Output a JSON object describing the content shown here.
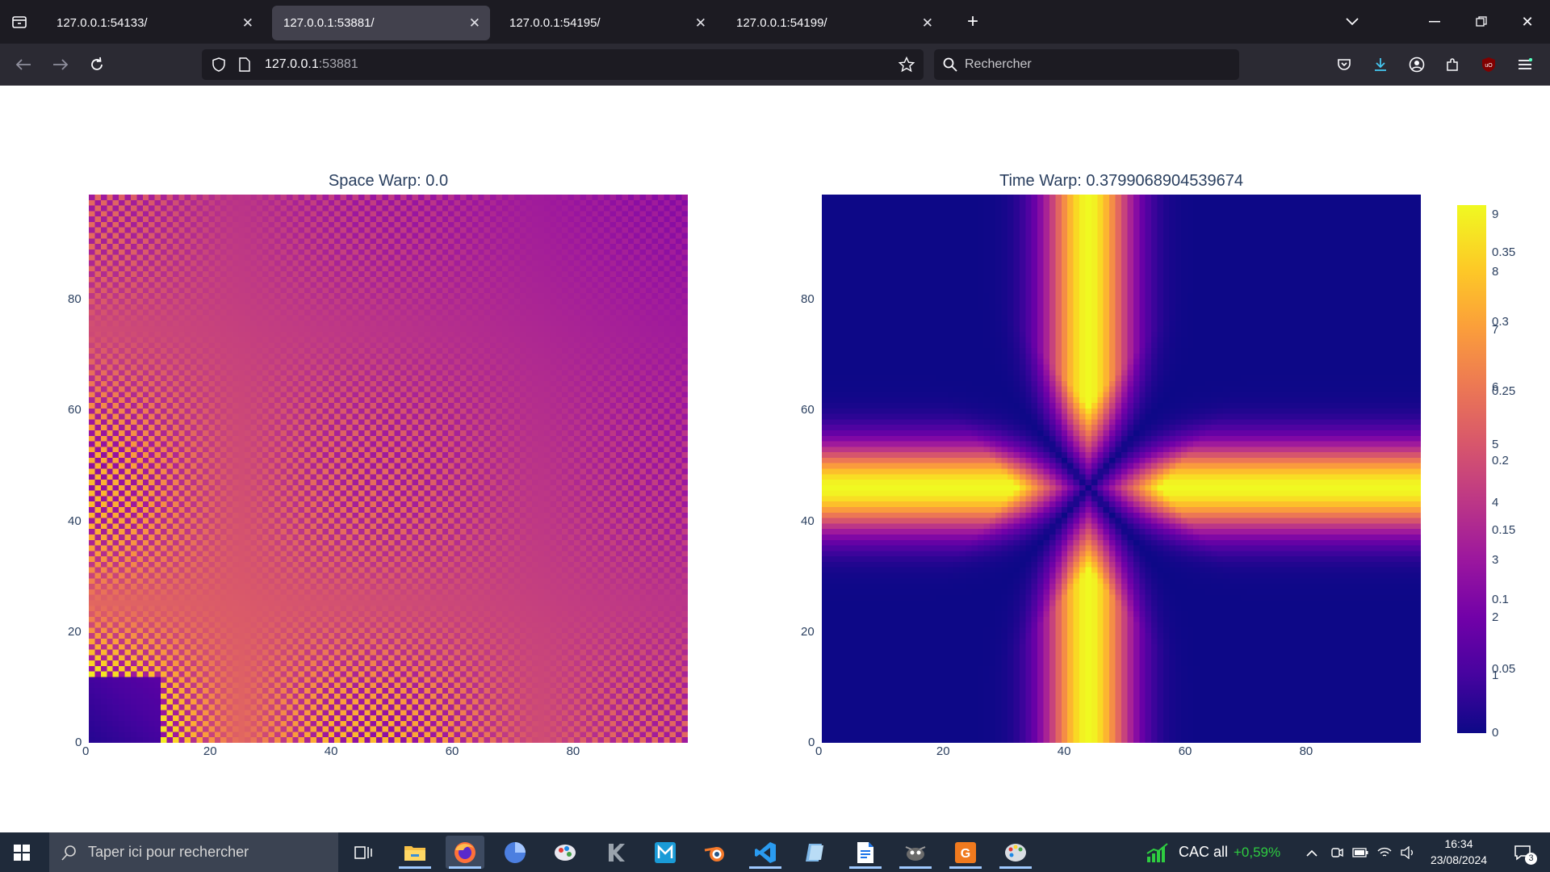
{
  "browser": {
    "tabs": [
      {
        "title": "127.0.0.1:54133/",
        "active": false
      },
      {
        "title": "127.0.0.1:53881/",
        "active": true
      },
      {
        "title": "127.0.0.1:54195/",
        "active": false
      },
      {
        "title": "127.0.0.1:54199/",
        "active": false
      }
    ],
    "url_host": "127.0.0.1",
    "url_port": ":53881",
    "search_placeholder": "Rechercher"
  },
  "chart_data": [
    {
      "type": "heatmap",
      "title": "Space Warp: 0.0",
      "xlabel": "",
      "ylabel": "",
      "xlim": [
        0,
        99
      ],
      "ylim": [
        0,
        99
      ],
      "xticks": [
        0,
        20,
        40,
        60,
        80
      ],
      "yticks": [
        0,
        20,
        40,
        60,
        80
      ],
      "colorscale": "plasma",
      "colorbar_range": [
        0,
        9
      ],
      "colorbar_ticks": [
        0,
        1,
        2,
        3,
        4,
        5,
        6,
        7,
        8,
        9
      ],
      "description_pattern": "checkerboard interference; bright yellow strips near x<=12 or y<=12, fading toward dark purple at upper right"
    },
    {
      "type": "heatmap",
      "title": "Time Warp: 0.3799068904539674",
      "xlabel": "",
      "ylabel": "",
      "xlim": [
        0,
        99
      ],
      "ylim": [
        0,
        99
      ],
      "xticks": [
        0,
        20,
        40,
        60,
        80
      ],
      "yticks": [
        0,
        20,
        40,
        60,
        80
      ],
      "colorscale": "plasma",
      "colorbar_range": [
        0,
        0.38
      ],
      "colorbar_ticks": [
        0.05,
        0.1,
        0.15,
        0.2,
        0.25,
        0.3,
        0.35
      ],
      "center": [
        44,
        46
      ],
      "description_pattern": "bright vertical band at x≈44 and horizontal band at y≈46 with a dark X through the center"
    }
  ],
  "taskbar": {
    "search_placeholder": "Taper ici pour rechercher",
    "stock_name": "CAC all",
    "stock_change": "+0,59%",
    "time": "16:34",
    "date": "23/08/2024",
    "notification_count": "3",
    "apps": [
      "task-view",
      "file-explorer",
      "firefox",
      "app-blue-sphere",
      "app-paint",
      "app-k",
      "app-m",
      "blender",
      "vscode",
      "app-blue-page",
      "docs",
      "app-gimp",
      "app-pdf",
      "app-palette"
    ]
  }
}
